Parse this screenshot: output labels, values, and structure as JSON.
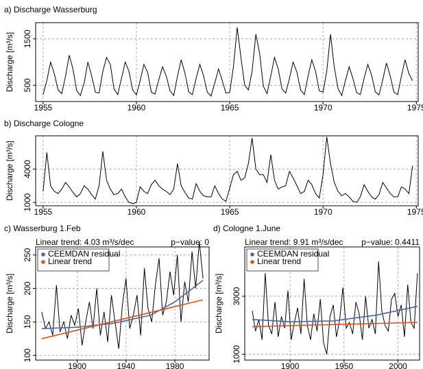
{
  "chart_data": [
    {
      "type": "line",
      "title": "a) Discharge Wasserburg",
      "y_label": "Discharge [m³/s]",
      "x": [
        1955,
        1955.2,
        1955.4,
        1955.6,
        1955.8,
        1956,
        1956.2,
        1956.4,
        1956.6,
        1956.8,
        1957,
        1957.2,
        1957.4,
        1957.6,
        1957.8,
        1958,
        1958.2,
        1958.4,
        1958.6,
        1958.8,
        1959,
        1959.2,
        1959.4,
        1959.6,
        1959.8,
        1960,
        1960.2,
        1960.4,
        1960.6,
        1960.8,
        1961,
        1961.2,
        1961.4,
        1961.6,
        1961.8,
        1962,
        1962.2,
        1962.4,
        1962.6,
        1962.8,
        1963,
        1963.2,
        1963.4,
        1963.6,
        1963.8,
        1964,
        1964.2,
        1964.4,
        1964.6,
        1964.8,
        1965,
        1965.2,
        1965.4,
        1965.6,
        1965.8,
        1966,
        1966.2,
        1966.4,
        1966.6,
        1966.8,
        1967,
        1967.2,
        1967.4,
        1967.6,
        1967.8,
        1968,
        1968.2,
        1968.4,
        1968.6,
        1968.8,
        1969,
        1969.2,
        1969.4,
        1969.6,
        1969.8,
        1970,
        1970.2,
        1970.4,
        1970.6,
        1970.8,
        1971,
        1971.2,
        1971.4,
        1971.6,
        1971.8,
        1972,
        1972.2,
        1972.4,
        1972.6,
        1972.8,
        1973,
        1973.2,
        1973.4,
        1973.6,
        1973.8,
        1974,
        1974.2,
        1974.4,
        1974.6,
        1974.8
      ],
      "series": [
        {
          "color": "#000000",
          "values": [
            300,
            600,
            1000,
            750,
            400,
            320,
            700,
            1150,
            850,
            380,
            280,
            550,
            1000,
            700,
            350,
            330,
            800,
            1100,
            950,
            420,
            300,
            650,
            1000,
            800,
            400,
            290,
            600,
            950,
            780,
            350,
            310,
            620,
            900,
            700,
            380,
            280,
            700,
            1050,
            760,
            360,
            300,
            650,
            950,
            700,
            350,
            270,
            550,
            850,
            600,
            330,
            350,
            900,
            1750,
            1100,
            500,
            400,
            800,
            1600,
            1200,
            480,
            320,
            700,
            1100,
            850,
            420,
            330,
            650,
            1000,
            780,
            400,
            300,
            700,
            1050,
            800,
            380,
            350,
            800,
            1600,
            900,
            430,
            280,
            600,
            900,
            650,
            340,
            300,
            650,
            950,
            720,
            360,
            290,
            620,
            980,
            700,
            350,
            300,
            700,
            1050,
            750,
            600
          ]
        }
      ],
      "xlim": [
        1954.6,
        1975.1
      ],
      "ylim": [
        150,
        1850
      ],
      "xticks": [
        1955,
        1960,
        1965,
        1970,
        1975
      ],
      "yticks": [
        500,
        1500
      ],
      "grid": true
    },
    {
      "type": "line",
      "title": "b) Discharge Cologne",
      "y_label": "Discharge [m³/s]",
      "x": [
        1955,
        1955.2,
        1955.4,
        1955.6,
        1955.8,
        1956,
        1956.2,
        1956.4,
        1956.6,
        1956.8,
        1957,
        1957.2,
        1957.4,
        1957.6,
        1957.8,
        1958,
        1958.2,
        1958.4,
        1958.6,
        1958.8,
        1959,
        1959.2,
        1959.4,
        1959.6,
        1959.8,
        1960,
        1960.2,
        1960.4,
        1960.6,
        1960.8,
        1961,
        1961.2,
        1961.4,
        1961.6,
        1961.8,
        1962,
        1962.2,
        1962.4,
        1962.6,
        1962.8,
        1963,
        1963.2,
        1963.4,
        1963.6,
        1963.8,
        1964,
        1964.2,
        1964.4,
        1964.6,
        1964.8,
        1965,
        1965.2,
        1965.4,
        1965.6,
        1965.8,
        1966,
        1966.2,
        1966.4,
        1966.6,
        1966.8,
        1967,
        1967.2,
        1967.4,
        1967.6,
        1967.8,
        1968,
        1968.2,
        1968.4,
        1968.6,
        1968.8,
        1969,
        1969.2,
        1969.4,
        1969.6,
        1969.8,
        1970,
        1970.2,
        1970.4,
        1970.6,
        1970.8,
        1971,
        1971.2,
        1971.4,
        1971.6,
        1971.8,
        1972,
        1972.2,
        1972.4,
        1972.6,
        1972.8,
        1973,
        1973.2,
        1973.4,
        1973.6,
        1973.8,
        1974,
        1974.2,
        1974.4,
        1974.6,
        1974.8
      ],
      "series": [
        {
          "color": "#000000",
          "values": [
            2000,
            5500,
            2500,
            2000,
            1800,
            2200,
            2800,
            2400,
            1900,
            1500,
            1800,
            2500,
            2200,
            1700,
            1300,
            2500,
            5600,
            3000,
            2200,
            1700,
            1800,
            2200,
            1500,
            1000,
            900,
            1000,
            2400,
            2000,
            1800,
            2600,
            3000,
            2500,
            2200,
            2000,
            1700,
            2200,
            4500,
            2500,
            1900,
            1400,
            1300,
            2700,
            2000,
            1600,
            1500,
            1500,
            2500,
            1800,
            1300,
            1100,
            2300,
            3500,
            3800,
            3000,
            3200,
            4500,
            6800,
            4000,
            3500,
            3500,
            2800,
            5300,
            3000,
            2200,
            2400,
            2500,
            3800,
            3200,
            2500,
            1800,
            2000,
            3000,
            2600,
            1800,
            1400,
            3500,
            6900,
            4500,
            2800,
            2000,
            1600,
            1800,
            1500,
            1100,
            1000,
            1500,
            2600,
            2000,
            1500,
            1300,
            1700,
            2800,
            2300,
            1800,
            1500,
            1500,
            2400,
            2200,
            1800,
            4300
          ]
        }
      ],
      "xlim": [
        1954.6,
        1975.1
      ],
      "ylim": [
        700,
        7000
      ],
      "xticks": [
        1955,
        1960,
        1965,
        1970,
        1975
      ],
      "yticks": [
        1000,
        4000
      ],
      "grid": true
    },
    {
      "type": "line",
      "title": "c) Wasserburg 1.Feb",
      "subtitle": "Linear trend: 4.03 m³/s/dec",
      "annotation": "p−value: 0",
      "y_label": "Discharge [m³/s]",
      "x": [
        1871,
        1874,
        1877,
        1880,
        1883,
        1886,
        1889,
        1892,
        1895,
        1898,
        1901,
        1904,
        1907,
        1910,
        1913,
        1916,
        1919,
        1922,
        1925,
        1928,
        1931,
        1934,
        1937,
        1940,
        1943,
        1946,
        1949,
        1952,
        1955,
        1958,
        1961,
        1964,
        1967,
        1970,
        1973,
        1976,
        1979,
        1982,
        1985,
        1988,
        1991,
        1994,
        1997,
        2000,
        2003
      ],
      "series": [
        {
          "color": "#000000",
          "values": [
            165,
            140,
            150,
            130,
            205,
            135,
            150,
            125,
            160,
            145,
            170,
            115,
            150,
            180,
            140,
            200,
            130,
            165,
            120,
            190,
            150,
            110,
            175,
            215,
            140,
            160,
            190,
            130,
            230,
            170,
            150,
            205,
            245,
            160,
            180,
            225,
            190,
            250,
            150,
            210,
            180,
            255,
            200,
            270,
            215
          ]
        },
        {
          "name": "CEEMDAN residual",
          "color": "#4a66a8",
          "x": [
            1871,
            1900,
            1930,
            1960,
            1980,
            2003
          ],
          "values": [
            140,
            142,
            148,
            160,
            180,
            212
          ]
        },
        {
          "name": "Linear trend",
          "color": "#d9541e",
          "x": [
            1871,
            2003
          ],
          "values": [
            125,
            183
          ]
        }
      ],
      "xlim": [
        1866,
        2008
      ],
      "ylim": [
        93,
        262
      ],
      "xticks": [
        1900,
        1940,
        1980
      ],
      "yticks": [
        100,
        150,
        200,
        250
      ],
      "grid": true,
      "legend": "upper left"
    },
    {
      "type": "line",
      "title": "d) Cologne 1.June",
      "subtitle": "Linear trend: 9.91 m³/s/dec",
      "annotation": "p−value: 0.4411",
      "y_label": "Discharge [m³/s]",
      "x": [
        1865,
        1868,
        1871,
        1874,
        1877,
        1880,
        1883,
        1886,
        1889,
        1892,
        1895,
        1898,
        1901,
        1904,
        1907,
        1910,
        1913,
        1916,
        1919,
        1922,
        1925,
        1928,
        1931,
        1934,
        1937,
        1940,
        1943,
        1946,
        1949,
        1952,
        1955,
        1958,
        1961,
        1964,
        1967,
        1970,
        1973,
        1976,
        1979,
        1982,
        1985,
        1988,
        1991,
        1994,
        1997,
        2000,
        2003,
        2006,
        2009,
        2012,
        2015,
        2018
      ],
      "series": [
        {
          "color": "#000000",
          "values": [
            2500,
            1800,
            2200,
            1500,
            3800,
            2000,
            1700,
            2800,
            1600,
            2300,
            1900,
            3200,
            1500,
            2100,
            2600,
            1700,
            3600,
            2000,
            1500,
            2400,
            1800,
            2900,
            1400,
            1000,
            2300,
            2700,
            1600,
            2200,
            3300,
            1900,
            2100,
            1700,
            2800,
            2400,
            1500,
            3000,
            1900,
            2200,
            1700,
            4200,
            2500,
            2000,
            1800,
            2900,
            3100,
            2300,
            2700,
            1600,
            3400,
            2100,
            1900,
            3800
          ]
        },
        {
          "name": "CEEMDAN residual",
          "color": "#4a66a8",
          "x": [
            1865,
            1900,
            1940,
            1980,
            2018
          ],
          "values": [
            2200,
            2120,
            2150,
            2350,
            2650
          ]
        },
        {
          "name": "Linear trend",
          "color": "#d9541e",
          "x": [
            1865,
            2018
          ],
          "values": [
            1950,
            2100
          ]
        }
      ],
      "xlim": [
        1858,
        2020
      ],
      "ylim": [
        800,
        4700
      ],
      "xticks": [
        1900,
        1950,
        2000
      ],
      "yticks": [
        1000,
        3000
      ],
      "grid": true,
      "legend": "upper left"
    }
  ]
}
